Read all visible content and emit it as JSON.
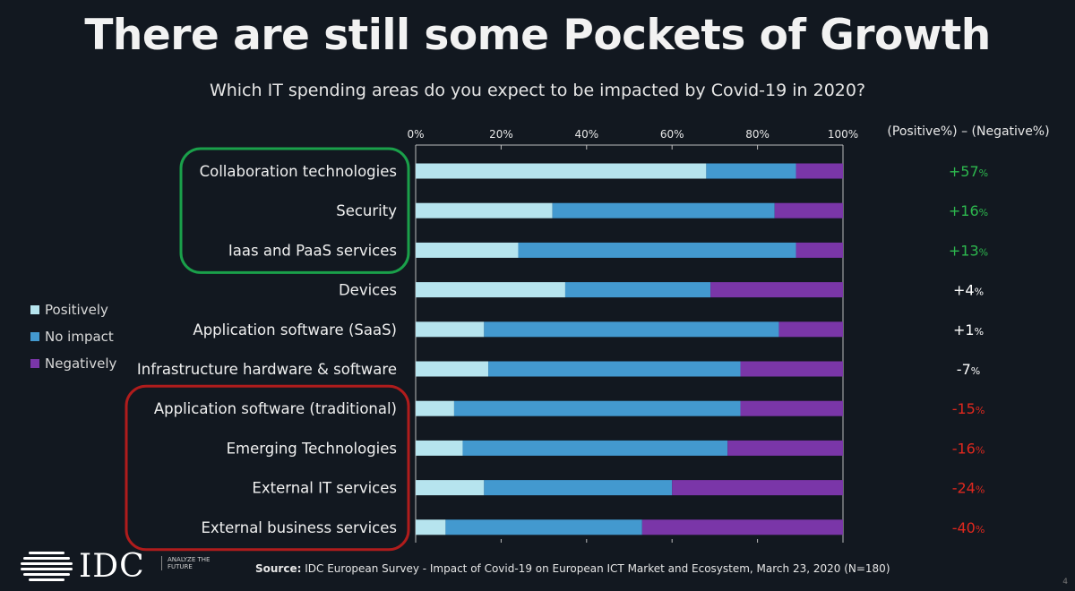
{
  "title": "There are still some Pockets of Growth",
  "subtitle": "Which IT spending areas do you expect to be impacted by Covid-19 in 2020?",
  "diff_header": "(Positive%) – (Negative%)",
  "source_label": "Source:",
  "source_text": "IDC European Survey - Impact of Covid-19 on European ICT Market and Ecosystem, March 23, 2020 (N=180)",
  "logo": {
    "name": "IDC",
    "tagline": "ANALYZE THE FUTURE"
  },
  "page_number": "4",
  "colors": {
    "positively": "#b6e4ee",
    "no_impact": "#4399cf",
    "negatively": "#7a36a8",
    "growth_box": "#1aa04a",
    "decline_box": "#b01c1c",
    "positive_diff": "#2db84e",
    "neutral_diff": "#ffffff",
    "negative_diff": "#e0281e"
  },
  "chart_data": {
    "type": "bar",
    "orientation": "horizontal-stacked-100",
    "title": "",
    "xlabel": "",
    "ylabel": "",
    "xlim": [
      0,
      100
    ],
    "x_ticks": [
      "0%",
      "20%",
      "40%",
      "60%",
      "80%",
      "100%"
    ],
    "legend_position": "left",
    "categories": [
      "Collaboration technologies",
      "Security",
      "Iaas and PaaS services",
      "Devices",
      "Application software (SaaS)",
      "Infrastructure hardware & software",
      "Application software (traditional)",
      "Emerging Technologies",
      "External IT services",
      "External business services"
    ],
    "series": [
      {
        "name": "Positively",
        "values": [
          68,
          32,
          24,
          35,
          16,
          17,
          9,
          11,
          16,
          7
        ]
      },
      {
        "name": "No impact",
        "values": [
          21,
          52,
          65,
          34,
          69,
          59,
          67,
          62,
          44,
          46
        ]
      },
      {
        "name": "Negatively",
        "values": [
          11,
          16,
          11,
          31,
          15,
          24,
          24,
          27,
          40,
          47
        ]
      }
    ],
    "differences": [
      "+57",
      "+16",
      "+13",
      "+4",
      "+1",
      "-7",
      "-15",
      "-16",
      "-24",
      "-40"
    ],
    "difference_unit": "%",
    "difference_class": [
      "pos",
      "pos",
      "pos",
      "neu",
      "neu",
      "neu",
      "neg",
      "neg",
      "neg",
      "neg"
    ],
    "groups": [
      {
        "name": "growth",
        "from": 0,
        "to": 2
      },
      {
        "name": "decline",
        "from": 6,
        "to": 9
      }
    ]
  }
}
